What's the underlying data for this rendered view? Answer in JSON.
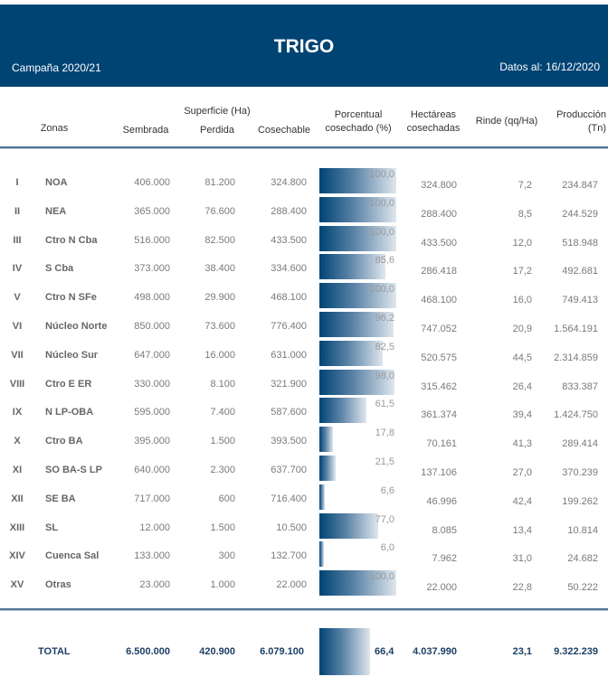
{
  "header": {
    "title": "TRIGO",
    "campaign": "Campaña 2020/21",
    "date": "Datos al: 16/12/2020"
  },
  "columns": {
    "zonas": "Zonas",
    "superficie_group": "Superficie (Ha)",
    "sembrada": "Sembrada",
    "perdida": "Perdida",
    "cosechable": "Cosechable",
    "porcentual_line1": "Porcentual",
    "porcentual_line2": "cosechado (%)",
    "hectareas_line1": "Hectáreas",
    "hectareas_line2": "cosechadas",
    "rinde": "Rinde (qq/Ha)",
    "produccion_line1": "Producción",
    "produccion_line2": "(Tn)"
  },
  "rows": [
    {
      "num": "I",
      "zone": "NOA",
      "sembrada": "406.000",
      "perdida": "81.200",
      "cosechable": "324.800",
      "pct_label": "100,0",
      "pct": 100.0,
      "hectareas": "324.800",
      "rinde": "7,2",
      "produccion": "234.847"
    },
    {
      "num": "II",
      "zone": "NEA",
      "sembrada": "365.000",
      "perdida": "76.600",
      "cosechable": "288.400",
      "pct_label": "100,0",
      "pct": 100.0,
      "hectareas": "288.400",
      "rinde": "8,5",
      "produccion": "244.529"
    },
    {
      "num": "III",
      "zone": "Ctro N Cba",
      "sembrada": "516.000",
      "perdida": "82.500",
      "cosechable": "433.500",
      "pct_label": "100,0",
      "pct": 100.0,
      "hectareas": "433.500",
      "rinde": "12,0",
      "produccion": "518.948"
    },
    {
      "num": "IV",
      "zone": "S Cba",
      "sembrada": "373.000",
      "perdida": "38.400",
      "cosechable": "334.600",
      "pct_label": "85,6",
      "pct": 85.6,
      "hectareas": "286.418",
      "rinde": "17,2",
      "produccion": "492.681"
    },
    {
      "num": "V",
      "zone": "Ctro N SFe",
      "sembrada": "498.000",
      "perdida": "29.900",
      "cosechable": "468.100",
      "pct_label": "100,0",
      "pct": 100.0,
      "hectareas": "468.100",
      "rinde": "16,0",
      "produccion": "749.413"
    },
    {
      "num": "VI",
      "zone": "Núcleo Norte",
      "sembrada": "850.000",
      "perdida": "73.600",
      "cosechable": "776.400",
      "pct_label": "96,2",
      "pct": 96.2,
      "hectareas": "747.052",
      "rinde": "20,9",
      "produccion": "1.564.191"
    },
    {
      "num": "VII",
      "zone": "Núcleo Sur",
      "sembrada": "647.000",
      "perdida": "16.000",
      "cosechable": "631.000",
      "pct_label": "82,5",
      "pct": 82.5,
      "hectareas": "520.575",
      "rinde": "44,5",
      "produccion": "2.314.859"
    },
    {
      "num": "VIII",
      "zone": "Ctro E ER",
      "sembrada": "330.000",
      "perdida": "8.100",
      "cosechable": "321.900",
      "pct_label": "98,0",
      "pct": 98.0,
      "hectareas": "315.462",
      "rinde": "26,4",
      "produccion": "833.387"
    },
    {
      "num": "IX",
      "zone": "N LP-OBA",
      "sembrada": "595.000",
      "perdida": "7.400",
      "cosechable": "587.600",
      "pct_label": "61,5",
      "pct": 61.5,
      "hectareas": "361.374",
      "rinde": "39,4",
      "produccion": "1.424.750"
    },
    {
      "num": "X",
      "zone": "Ctro BA",
      "sembrada": "395.000",
      "perdida": "1.500",
      "cosechable": "393.500",
      "pct_label": "17,8",
      "pct": 17.8,
      "hectareas": "70.161",
      "rinde": "41,3",
      "produccion": "289.414"
    },
    {
      "num": "XI",
      "zone": "SO BA-S LP",
      "sembrada": "640.000",
      "perdida": "2.300",
      "cosechable": "637.700",
      "pct_label": "21,5",
      "pct": 21.5,
      "hectareas": "137.106",
      "rinde": "27,0",
      "produccion": "370.239"
    },
    {
      "num": "XII",
      "zone": "SE BA",
      "sembrada": "717.000",
      "perdida": "600",
      "cosechable": "716.400",
      "pct_label": "6,6",
      "pct": 6.6,
      "hectareas": "46.996",
      "rinde": "42,4",
      "produccion": "199.262"
    },
    {
      "num": "XIII",
      "zone": "SL",
      "sembrada": "12.000",
      "perdida": "1.500",
      "cosechable": "10.500",
      "pct_label": "77,0",
      "pct": 77.0,
      "hectareas": "8.085",
      "rinde": "13,4",
      "produccion": "10.814"
    },
    {
      "num": "XIV",
      "zone": "Cuenca Sal",
      "sembrada": "133.000",
      "perdida": "300",
      "cosechable": "132.700",
      "pct_label": "6,0",
      "pct": 6.0,
      "hectareas": "7.962",
      "rinde": "31,0",
      "produccion": "24.682"
    },
    {
      "num": "XV",
      "zone": "Otras",
      "sembrada": "23.000",
      "perdida": "1.000",
      "cosechable": "22.000",
      "pct_label": "100,0",
      "pct": 100.0,
      "hectareas": "22.000",
      "rinde": "22,8",
      "produccion": "50.222"
    }
  ],
  "total": {
    "label": "TOTAL",
    "sembrada": "6.500.000",
    "perdida": "420.900",
    "cosechable": "6.079.100",
    "pct_label": "66,4",
    "pct": 66.4,
    "hectareas": "4.037.990",
    "rinde": "23,1",
    "produccion": "9.322.239"
  },
  "colors": {
    "header_bg": "#004474",
    "bar_dark": "#004474",
    "bar_light": "#dfe7ee",
    "total_text": "#1c3f66"
  }
}
